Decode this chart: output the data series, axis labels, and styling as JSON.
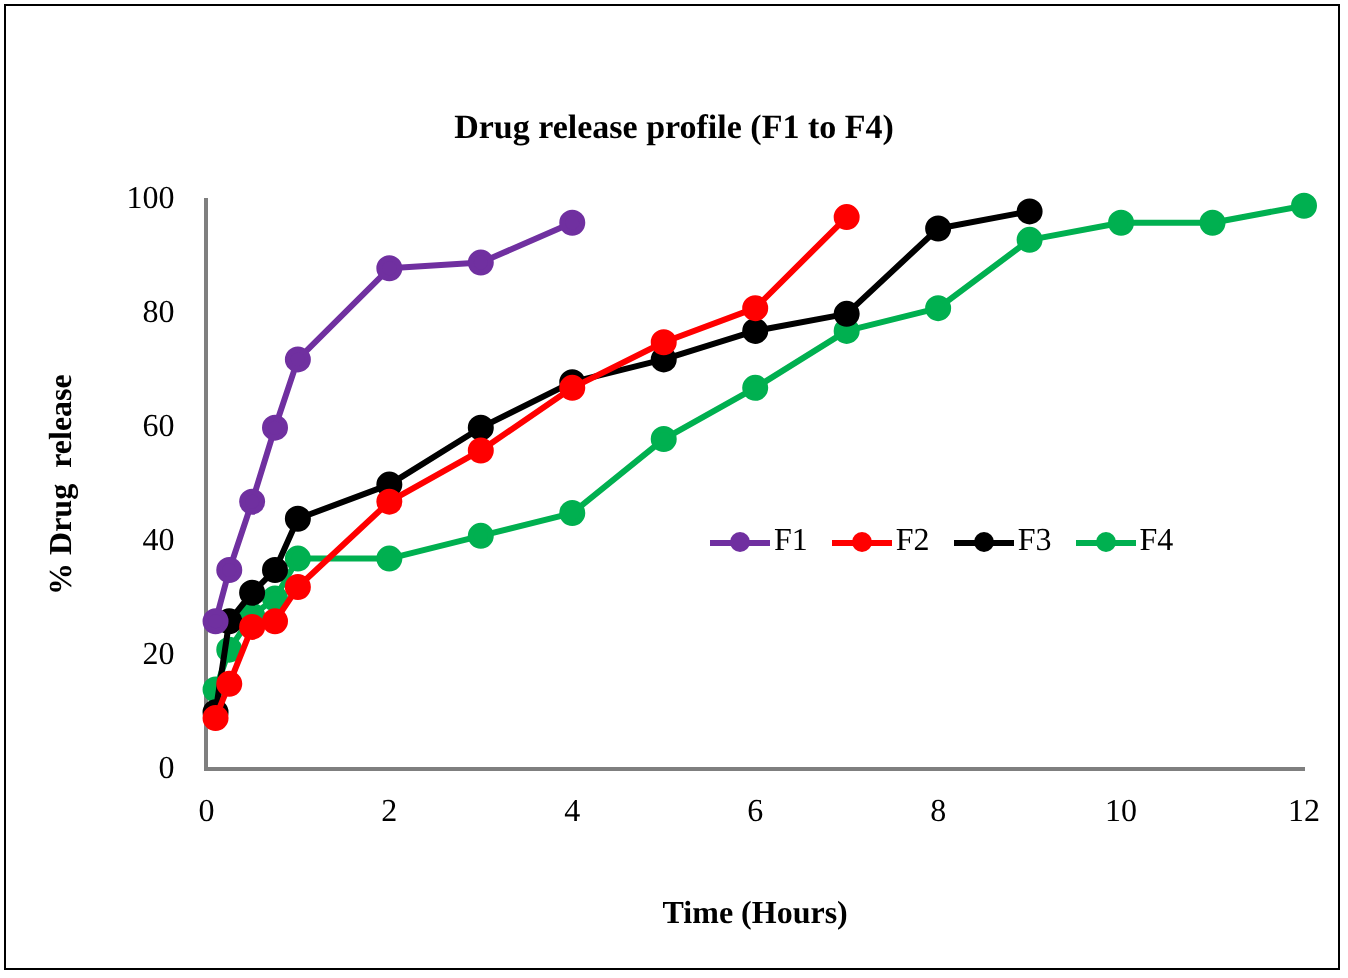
{
  "chart_data": {
    "type": "line",
    "title": "Drug release profile (F1 to F4)",
    "xlabel": "Time (Hours)",
    "ylabel": "% Drug  release",
    "xlim": [
      0,
      12
    ],
    "xticks": [
      0,
      2,
      4,
      6,
      8,
      10,
      12
    ],
    "ylim": [
      0,
      100
    ],
    "yticks": [
      0,
      20,
      40,
      60,
      80,
      100
    ],
    "marker": "circle",
    "line_style": "solid",
    "grid": false,
    "legend": "right",
    "series": [
      {
        "name": "F1",
        "color": "#7030a0",
        "x": [
          0.1,
          0.25,
          0.5,
          0.75,
          1,
          2,
          3,
          4
        ],
        "values": [
          26,
          35,
          47,
          60,
          72,
          88,
          89,
          96
        ]
      },
      {
        "name": "F2",
        "color": "#ff0000",
        "x": [
          0.1,
          0.25,
          0.5,
          0.75,
          1,
          2,
          3,
          4,
          5,
          6,
          7
        ],
        "values": [
          9,
          15,
          25,
          26,
          32,
          47,
          56,
          67,
          75,
          81,
          97
        ]
      },
      {
        "name": "F3",
        "color": "#000000",
        "x": [
          0.1,
          0.25,
          0.5,
          0.75,
          1,
          2,
          3,
          4,
          5,
          6,
          7,
          8,
          9
        ],
        "values": [
          10,
          26,
          31,
          35,
          44,
          50,
          60,
          68,
          72,
          77,
          80,
          95,
          98
        ]
      },
      {
        "name": "F4",
        "color": "#00b050",
        "x": [
          0.1,
          0.25,
          0.5,
          0.75,
          1,
          2,
          3,
          4,
          5,
          6,
          7,
          8,
          9,
          10,
          11,
          12
        ],
        "values": [
          14,
          21,
          27,
          30,
          37,
          37,
          41,
          45,
          58,
          67,
          77,
          81,
          93,
          96,
          96,
          99
        ]
      }
    ]
  }
}
